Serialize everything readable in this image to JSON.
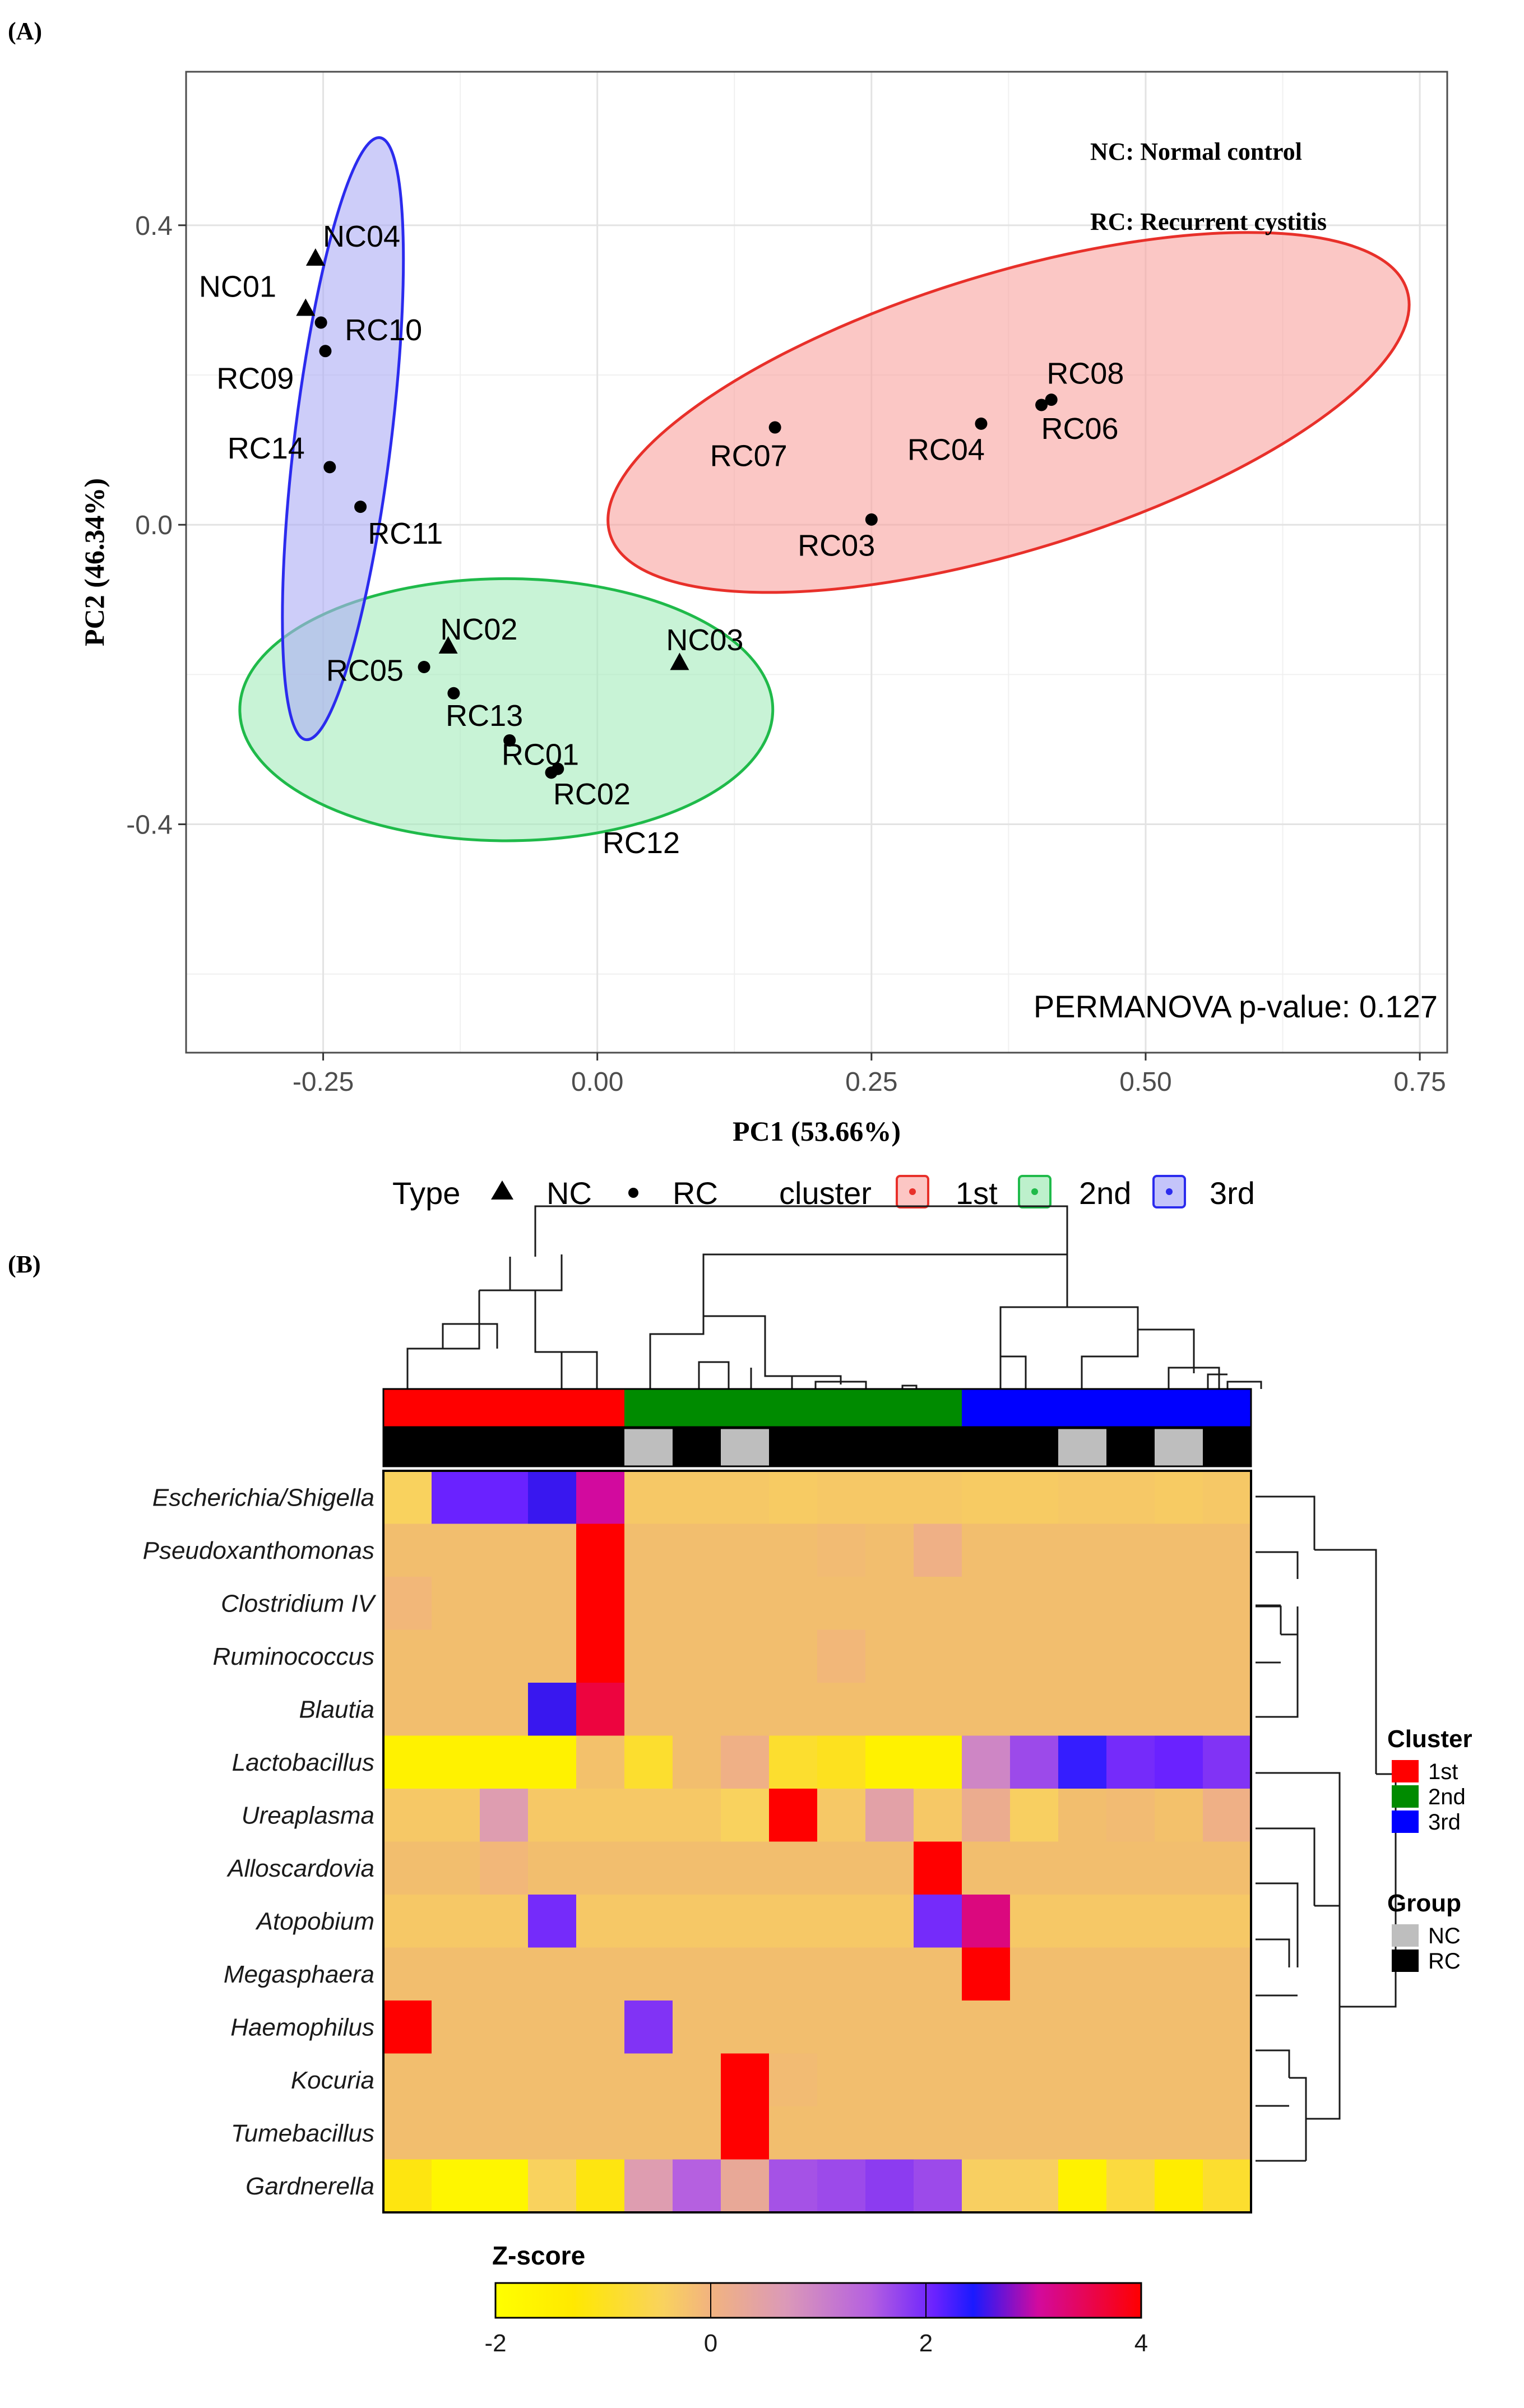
{
  "panels": {
    "a_label": "(A)",
    "b_label": "(B)"
  },
  "pca": {
    "xlabel": "PC1 (53.66%)",
    "ylabel": "PC2 (46.34%)",
    "legend_nc": "NC: Normal control",
    "legend_rc": "RC: Recurrent cystitis",
    "permanova": "PERMANOVA p-value: 0.127",
    "xlim": [
      -0.375,
      0.775
    ],
    "ylim": [
      -0.705,
      0.605
    ],
    "xticks": [
      -0.25,
      0.0,
      0.25,
      0.5,
      0.75
    ],
    "xtick_labels": [
      "-0.25",
      "0.00",
      "0.25",
      "0.50",
      "0.75"
    ],
    "yticks": [
      -0.4,
      0.0,
      0.4
    ],
    "ytick_labels": [
      "-0.4",
      "0.0",
      "0.4"
    ],
    "ygrid_minor": [
      -0.6,
      -0.2,
      0.2
    ],
    "xgrid_minor": [
      -0.125,
      0.125,
      0.375,
      0.625
    ],
    "bottom_legend": {
      "type_title": "Type",
      "nc": "NC",
      "rc": "RC",
      "cluster_title": "cluster",
      "c1": "1st",
      "c2": "2nd",
      "c3": "3rd"
    },
    "colors": {
      "c1": "#e8302a",
      "c2": "#1fba4a",
      "c3": "#2b2bee"
    }
  },
  "chart_data": [
    {
      "type": "scatter",
      "xlabel": "PC1 (53.66%)",
      "ylabel": "PC2 (46.34%)",
      "xlim": [
        -0.375,
        0.775
      ],
      "ylim": [
        -0.705,
        0.605
      ],
      "points": [
        {
          "name": "NC04",
          "type": "NC",
          "x": -0.257,
          "y": 0.355,
          "lx": -0.215,
          "ly": 0.385
        },
        {
          "name": "NC01",
          "type": "NC",
          "x": -0.266,
          "y": 0.288,
          "lx": -0.328,
          "ly": 0.318
        },
        {
          "name": "RC10",
          "type": "RC",
          "x": -0.252,
          "y": 0.27,
          "lx": -0.195,
          "ly": 0.26
        },
        {
          "name": "RC09",
          "type": "RC",
          "x": -0.248,
          "y": 0.232,
          "lx": -0.312,
          "ly": 0.195
        },
        {
          "name": "RC14",
          "type": "RC",
          "x": -0.244,
          "y": 0.077,
          "lx": -0.302,
          "ly": 0.102
        },
        {
          "name": "RC11",
          "type": "RC",
          "x": -0.216,
          "y": 0.024,
          "lx": -0.175,
          "ly": -0.012
        },
        {
          "name": "NC02",
          "type": "NC",
          "x": -0.136,
          "y": -0.163,
          "lx": -0.108,
          "ly": -0.14
        },
        {
          "name": "RC05",
          "type": "RC",
          "x": -0.158,
          "y": -0.19,
          "lx": -0.212,
          "ly": -0.195
        },
        {
          "name": "RC13",
          "type": "RC",
          "x": -0.131,
          "y": -0.225,
          "lx": -0.103,
          "ly": -0.255
        },
        {
          "name": "RC01",
          "type": "RC",
          "x": -0.08,
          "y": -0.288,
          "lx": -0.052,
          "ly": -0.307
        },
        {
          "name": "RC02",
          "type": "RC",
          "x": -0.036,
          "y": -0.326,
          "lx": -0.005,
          "ly": -0.36
        },
        {
          "name": "RC12",
          "type": "RC",
          "x": -0.042,
          "y": -0.331,
          "lx": 0.04,
          "ly": -0.425
        },
        {
          "name": "NC03",
          "type": "NC",
          "x": 0.075,
          "y": -0.185,
          "lx": 0.098,
          "ly": -0.154
        },
        {
          "name": "RC07",
          "type": "RC",
          "x": 0.162,
          "y": 0.13,
          "lx": 0.138,
          "ly": 0.092
        },
        {
          "name": "RC04",
          "type": "RC",
          "x": 0.35,
          "y": 0.135,
          "lx": 0.318,
          "ly": 0.1
        },
        {
          "name": "RC08",
          "type": "RC",
          "x": 0.405,
          "y": 0.16,
          "lx": 0.445,
          "ly": 0.202
        },
        {
          "name": "RC06",
          "type": "RC",
          "x": 0.414,
          "y": 0.167,
          "lx": 0.44,
          "ly": 0.128
        },
        {
          "name": "RC03",
          "type": "RC",
          "x": 0.25,
          "y": 0.007,
          "lx": 0.218,
          "ly": -0.028
        }
      ],
      "clusters": [
        {
          "name": "1st",
          "cx": 0.375,
          "cy": 0.15,
          "rx": 0.38,
          "ry": 0.185,
          "rot": -17
        },
        {
          "name": "2nd",
          "cx": -0.083,
          "cy": -0.247,
          "rx": 0.243,
          "ry": 0.175,
          "rot": 0
        },
        {
          "name": "3rd",
          "cx": -0.232,
          "cy": 0.115,
          "rx": 0.044,
          "ry": 0.405,
          "rot": 7
        }
      ]
    },
    {
      "type": "heatmap",
      "rows": [
        "Escherichia/Shigella",
        "Pseudoxanthomonas",
        "Clostridium IV",
        "Ruminococcus",
        "Blautia",
        "Lactobacillus",
        "Ureaplasma",
        "Alloscardovia",
        "Atopobium",
        "Megasphaera",
        "Haemophilus",
        "Kocuria",
        "Tumebacillus",
        "Gardnerella"
      ],
      "column_cluster": [
        1,
        1,
        1,
        1,
        1,
        2,
        2,
        2,
        2,
        2,
        2,
        2,
        3,
        3,
        3,
        3,
        3,
        3
      ],
      "column_group": [
        "RC",
        "RC",
        "RC",
        "RC",
        "RC",
        "NC",
        "RC",
        "NC",
        "RC",
        "RC",
        "RC",
        "RC",
        "RC",
        "RC",
        "NC",
        "RC",
        "NC",
        "RC"
      ],
      "values": [
        [
          -0.9,
          2.1,
          2.1,
          2.5,
          3.0,
          -0.6,
          -0.6,
          -0.6,
          -0.7,
          -0.6,
          -0.6,
          -0.6,
          -0.7,
          -0.7,
          -0.6,
          -0.6,
          -0.7,
          -0.6
        ],
        [
          -0.3,
          -0.3,
          -0.3,
          -0.3,
          4.0,
          -0.3,
          -0.3,
          -0.3,
          -0.3,
          -0.2,
          -0.3,
          0.1,
          -0.3,
          -0.3,
          -0.3,
          -0.3,
          -0.3,
          -0.3
        ],
        [
          -0.1,
          -0.3,
          -0.3,
          -0.3,
          4.0,
          -0.3,
          -0.3,
          -0.3,
          -0.3,
          -0.3,
          -0.3,
          -0.3,
          -0.3,
          -0.3,
          -0.3,
          -0.3,
          -0.3,
          -0.3
        ],
        [
          -0.3,
          -0.3,
          -0.3,
          -0.3,
          4.0,
          -0.3,
          -0.3,
          -0.3,
          -0.3,
          -0.1,
          -0.3,
          -0.3,
          -0.3,
          -0.3,
          -0.3,
          -0.3,
          -0.3,
          -0.3
        ],
        [
          -0.3,
          -0.3,
          -0.3,
          2.5,
          3.6,
          -0.3,
          -0.3,
          -0.3,
          -0.3,
          -0.3,
          -0.3,
          -0.3,
          -0.3,
          -0.3,
          -0.3,
          -0.3,
          -0.3,
          -0.3
        ],
        [
          -1.7,
          -1.7,
          -1.7,
          -1.7,
          -0.4,
          -1.2,
          -0.3,
          0.1,
          -1.2,
          -1.3,
          -1.7,
          -1.7,
          0.9,
          1.6,
          2.3,
          2.0,
          2.1,
          1.9
        ],
        [
          -0.6,
          -0.6,
          0.6,
          -0.6,
          -0.6,
          -0.6,
          -0.6,
          -0.9,
          4.0,
          -0.6,
          0.5,
          -0.6,
          0.2,
          -0.8,
          -0.3,
          -0.2,
          -0.4,
          0.1
        ],
        [
          -0.3,
          -0.3,
          -0.1,
          -0.3,
          -0.3,
          -0.3,
          -0.3,
          -0.3,
          -0.3,
          -0.3,
          -0.3,
          4.0,
          -0.3,
          -0.3,
          -0.3,
          -0.3,
          -0.3,
          -0.3
        ],
        [
          -0.6,
          -0.6,
          -0.6,
          2.0,
          -0.6,
          -0.6,
          -0.6,
          -0.6,
          -0.6,
          -0.6,
          -0.6,
          2.0,
          3.2,
          -0.6,
          -0.6,
          -0.6,
          -0.6,
          -0.6
        ],
        [
          -0.3,
          -0.3,
          -0.3,
          -0.3,
          -0.3,
          -0.3,
          -0.3,
          -0.3,
          -0.3,
          -0.3,
          -0.3,
          -0.3,
          4.0,
          -0.3,
          -0.3,
          -0.3,
          -0.3,
          -0.3
        ],
        [
          4.0,
          -0.3,
          -0.3,
          -0.3,
          -0.3,
          1.9,
          -0.3,
          -0.3,
          -0.3,
          -0.3,
          -0.3,
          -0.3,
          -0.3,
          -0.3,
          -0.3,
          -0.3,
          -0.3,
          -0.3
        ],
        [
          -0.3,
          -0.3,
          -0.3,
          -0.3,
          -0.3,
          -0.3,
          -0.3,
          4.0,
          -0.2,
          -0.3,
          -0.3,
          -0.3,
          -0.3,
          -0.3,
          -0.3,
          -0.3,
          -0.3,
          -0.3
        ],
        [
          -0.3,
          -0.3,
          -0.3,
          -0.3,
          -0.3,
          -0.3,
          -0.3,
          4.0,
          -0.3,
          -0.3,
          -0.3,
          -0.3,
          -0.3,
          -0.3,
          -0.3,
          -0.3,
          -0.3,
          -0.3
        ],
        [
          -1.4,
          -1.8,
          -1.8,
          -0.9,
          -1.4,
          0.6,
          1.3,
          0.3,
          1.5,
          1.6,
          1.8,
          1.6,
          -0.8,
          -0.8,
          -1.7,
          -1.1,
          -1.6,
          -1.2
        ]
      ],
      "legend_title": "Z-score",
      "colorbar_ticks": [
        -2,
        0,
        2,
        4
      ],
      "colorbar_tick_labels": [
        "-2",
        "0",
        "2",
        "4"
      ],
      "cluster_legend": {
        "title": "Cluster",
        "items": [
          "1st",
          "2nd",
          "3rd"
        ]
      },
      "group_legend": {
        "title": "Group",
        "items": [
          "NC",
          "RC"
        ]
      },
      "annotation_colors": {
        "1": "#ff0000",
        "2": "#008b00",
        "3": "#0000ff",
        "NC": "#bebebe",
        "RC": "#000000"
      }
    }
  ]
}
